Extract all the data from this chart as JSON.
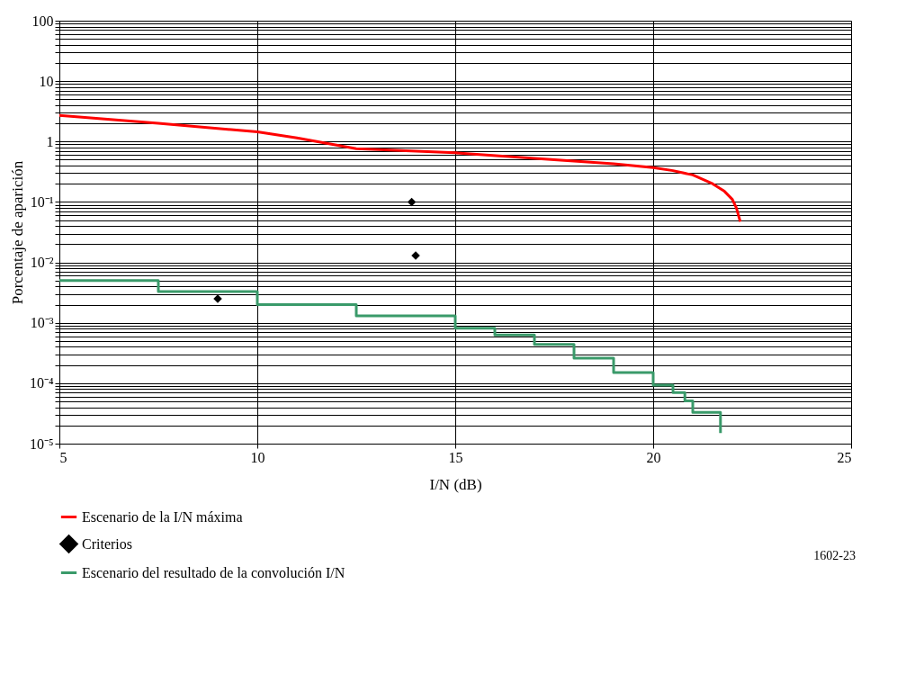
{
  "chart_data": {
    "type": "line",
    "xlabel": "I/N (dB)",
    "ylabel": "Porcentaje de aparición",
    "log": "y",
    "grid": true,
    "legend": "bottom",
    "xlim": [
      5,
      25
    ],
    "xticks": [
      5,
      10,
      15,
      20,
      25
    ],
    "ylim": [
      1e-05,
      100
    ],
    "yticks": [
      {
        "value": 1e-05,
        "label": "10⁻⁵"
      },
      {
        "value": 0.0001,
        "label": "10⁻⁴"
      },
      {
        "value": 0.001,
        "label": "10⁻³"
      },
      {
        "value": 0.01,
        "label": "10⁻²"
      },
      {
        "value": 0.1,
        "label": "10⁻¹"
      },
      1,
      10,
      100
    ],
    "series": [
      {
        "name": "Escenario de la I/N máxima",
        "color": "#ff0000",
        "x": [
          5,
          7.5,
          10,
          11,
          12.5,
          15,
          17.5,
          19,
          20,
          20.5,
          21,
          21.5,
          21.8,
          22,
          22.1,
          22.2
        ],
        "values": [
          2.7,
          2.0,
          1.45,
          1.15,
          0.76,
          0.65,
          0.5,
          0.43,
          0.37,
          0.33,
          0.28,
          0.2,
          0.15,
          0.11,
          0.08,
          0.047
        ]
      },
      {
        "name": "Criterios",
        "type": "scatter",
        "marker": "diamond",
        "color": "#000000",
        "x": [
          9.0,
          13.9,
          14.0
        ],
        "values": [
          0.0025,
          0.1,
          0.013
        ]
      },
      {
        "name": "Escenario del resultado de la convolución I/N",
        "type": "step",
        "color": "#3a9a6a",
        "x": [
          5,
          7.5,
          10,
          12.5,
          15,
          16,
          17,
          18,
          19,
          20,
          20.5,
          20.8,
          21,
          21.6,
          21.7
        ],
        "values": [
          0.005,
          0.0033,
          0.002,
          0.0013,
          0.00081,
          0.00063,
          0.00044,
          0.00026,
          0.00015,
          9.3e-05,
          7e-05,
          5.1e-05,
          3.3e-05,
          3.3e-05,
          1.5e-05
        ]
      }
    ],
    "annotations": [
      "1602-23"
    ]
  }
}
